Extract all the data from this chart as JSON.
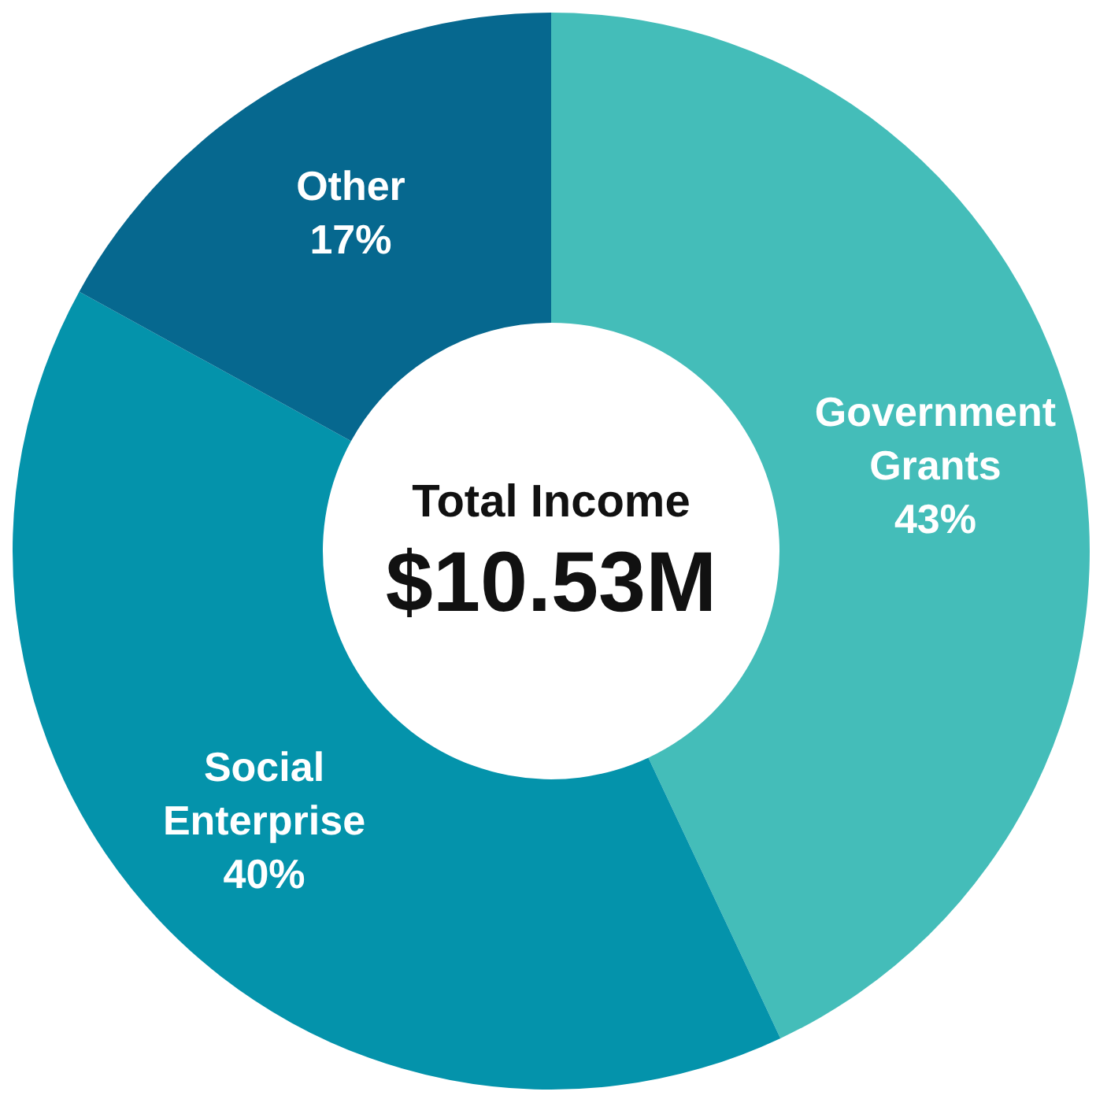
{
  "chart_data": {
    "type": "donut",
    "categories": [
      "Government Grants",
      "Social Enterprise",
      "Other"
    ],
    "values": [
      43,
      40,
      17
    ],
    "colors": [
      "#44bdb9",
      "#0493ab",
      "#06688f"
    ],
    "value_labels": [
      "43%",
      "40%",
      "17%"
    ],
    "legend": false,
    "annotations": [
      "Total Income",
      "$10.53M"
    ]
  }
}
